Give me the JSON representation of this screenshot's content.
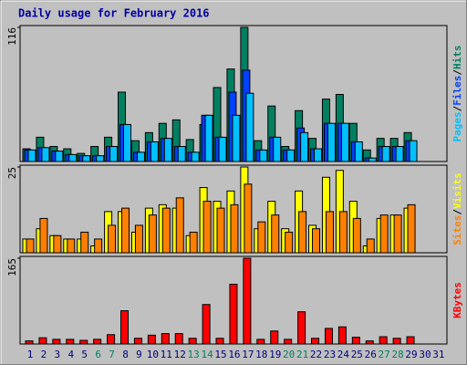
{
  "chart_data": [
    {
      "type": "bar",
      "title": "Daily usage for February 2016",
      "ylim": [
        0,
        116
      ],
      "yticks": [
        116
      ],
      "series": [
        {
          "name": "Hits",
          "color": "#008060",
          "values": [
            11,
            21,
            13,
            11,
            7,
            13,
            21,
            60,
            18,
            25,
            33,
            36,
            19,
            32,
            64,
            80,
            116,
            18,
            48,
            13,
            44,
            20,
            54,
            58,
            33,
            10,
            20,
            20,
            25,
            0,
            0
          ]
        },
        {
          "name": "Files",
          "color": "#0040ff",
          "values": [
            10,
            12,
            9,
            6,
            5,
            5,
            13,
            32,
            8,
            17,
            20,
            13,
            8,
            40,
            21,
            60,
            79,
            10,
            21,
            10,
            29,
            11,
            33,
            33,
            17,
            3,
            13,
            13,
            18,
            0,
            0
          ]
        },
        {
          "name": "Pages",
          "color": "#00c0ff",
          "values": [
            10,
            12,
            9,
            6,
            5,
            5,
            13,
            32,
            8,
            17,
            20,
            13,
            8,
            40,
            21,
            40,
            59,
            10,
            21,
            10,
            25,
            11,
            33,
            33,
            17,
            3,
            13,
            13,
            18,
            0,
            0
          ]
        }
      ]
    },
    {
      "type": "bar",
      "ylim": [
        0,
        25
      ],
      "yticks": [
        25
      ],
      "series": [
        {
          "name": "Visits",
          "color": "#ffff00",
          "values": [
            4,
            7,
            5,
            4,
            4,
            2,
            12,
            12,
            6,
            13,
            14,
            13,
            5,
            19,
            15,
            18,
            25,
            7,
            15,
            7,
            18,
            8,
            22,
            24,
            15,
            2,
            10,
            11,
            13,
            0,
            0
          ]
        },
        {
          "name": "Sites",
          "color": "#ff8000",
          "values": [
            4,
            10,
            5,
            4,
            6,
            4,
            8,
            13,
            8,
            11,
            13,
            16,
            6,
            15,
            13,
            14,
            20,
            9,
            11,
            6,
            12,
            7,
            12,
            12,
            10,
            4,
            11,
            11,
            14,
            0,
            0
          ]
        }
      ]
    },
    {
      "type": "bar",
      "ylim": [
        0,
        165
      ],
      "yticks": [
        165
      ],
      "categories": [
        "1",
        "2",
        "3",
        "4",
        "5",
        "6",
        "7",
        "8",
        "9",
        "10",
        "11",
        "12",
        "13",
        "14",
        "15",
        "16",
        "17",
        "18",
        "19",
        "20",
        "21",
        "22",
        "23",
        "24",
        "25",
        "26",
        "27",
        "28",
        "29",
        "30",
        "31"
      ],
      "category_colors": [
        "#000080",
        "#000080",
        "#000080",
        "#000080",
        "#000080",
        "#008060",
        "#008060",
        "#000080",
        "#000080",
        "#000080",
        "#000080",
        "#000080",
        "#008060",
        "#008060",
        "#000080",
        "#000080",
        "#000080",
        "#000080",
        "#000080",
        "#008060",
        "#008060",
        "#000080",
        "#000080",
        "#000080",
        "#000080",
        "#000080",
        "#008060",
        "#008060",
        "#000080",
        "#000080",
        "#000080"
      ],
      "series": [
        {
          "name": "KBytes",
          "color": "#ff0000",
          "values": [
            6,
            12,
            9,
            9,
            7,
            9,
            18,
            64,
            11,
            17,
            20,
            20,
            11,
            76,
            11,
            115,
            165,
            9,
            25,
            9,
            62,
            11,
            30,
            33,
            13,
            6,
            14,
            11,
            14,
            0,
            0
          ]
        }
      ]
    }
  ],
  "legend_separator": "/"
}
